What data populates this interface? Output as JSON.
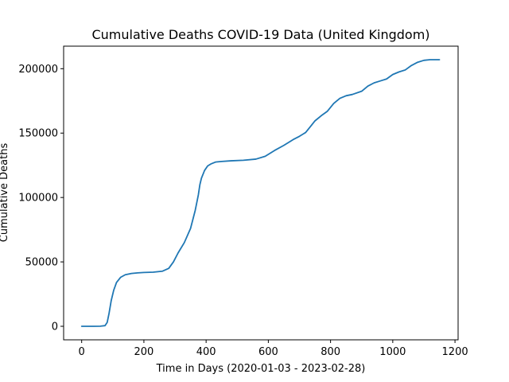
{
  "chart_data": {
    "type": "line",
    "title": "Cumulative Deaths COVID-19 Data (United Kingdom)",
    "xlabel": "Time in Days (2020-01-03 - 2023-02-28)",
    "ylabel": "Cumulative Deaths",
    "xlim": [
      -58,
      1210
    ],
    "ylim": [
      -10500,
      217500
    ],
    "xticks": [
      0,
      200,
      400,
      600,
      800,
      1000,
      1200
    ],
    "yticks": [
      0,
      50000,
      100000,
      150000,
      200000
    ],
    "grid": false,
    "series": [
      {
        "color": "#1f77b4",
        "x": [
          0,
          20,
          40,
          60,
          75,
          82,
          88,
          95,
          103,
          112,
          125,
          140,
          160,
          180,
          200,
          230,
          260,
          280,
          295,
          310,
          330,
          350,
          365,
          375,
          380,
          385,
          395,
          405,
          415,
          430,
          450,
          480,
          520,
          560,
          590,
          620,
          650,
          680,
          700,
          720,
          735,
          750,
          770,
          790,
          810,
          830,
          850,
          870,
          900,
          920,
          940,
          960,
          980,
          1000,
          1020,
          1040,
          1060,
          1080,
          1100,
          1120,
          1140,
          1150
        ],
        "y": [
          0,
          0,
          0,
          100,
          500,
          3000,
          10000,
          20000,
          28000,
          34000,
          38000,
          40000,
          41000,
          41500,
          41800,
          42000,
          42800,
          45000,
          50000,
          57000,
          65000,
          76000,
          90000,
          102000,
          110000,
          115000,
          121000,
          124500,
          126000,
          127500,
          128000,
          128500,
          128900,
          129800,
          132000,
          136500,
          140500,
          145000,
          147500,
          150500,
          155000,
          159500,
          163500,
          167000,
          173000,
          177000,
          179000,
          180000,
          182500,
          186500,
          189000,
          190500,
          192000,
          195500,
          197500,
          199000,
          202500,
          205000,
          206500,
          207000,
          207000,
          207000
        ]
      }
    ]
  }
}
